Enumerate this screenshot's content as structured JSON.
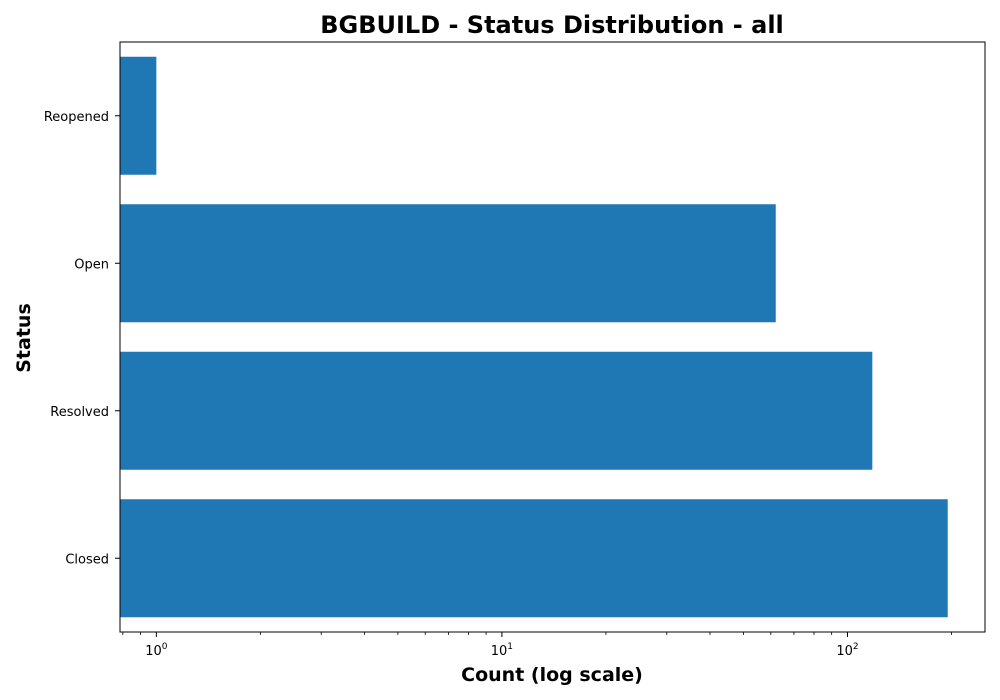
{
  "chart_data": {
    "type": "bar",
    "orientation": "horizontal",
    "title": "BGBUILD - Status Distribution - all",
    "xlabel": "Count (log scale)",
    "ylabel": "Status",
    "x_scale": "log",
    "xlim": [
      0.785,
      250
    ],
    "x_ticks": [
      {
        "value": 1,
        "base": "10",
        "exp": "0"
      },
      {
        "value": 10,
        "base": "10",
        "exp": "1"
      },
      {
        "value": 100,
        "base": "10",
        "exp": "2"
      }
    ],
    "categories": [
      "Closed",
      "Resolved",
      "Open",
      "Reopened"
    ],
    "values": [
      195,
      118,
      62,
      1
    ],
    "bar_color": "#1f77b4",
    "grid": false
  }
}
